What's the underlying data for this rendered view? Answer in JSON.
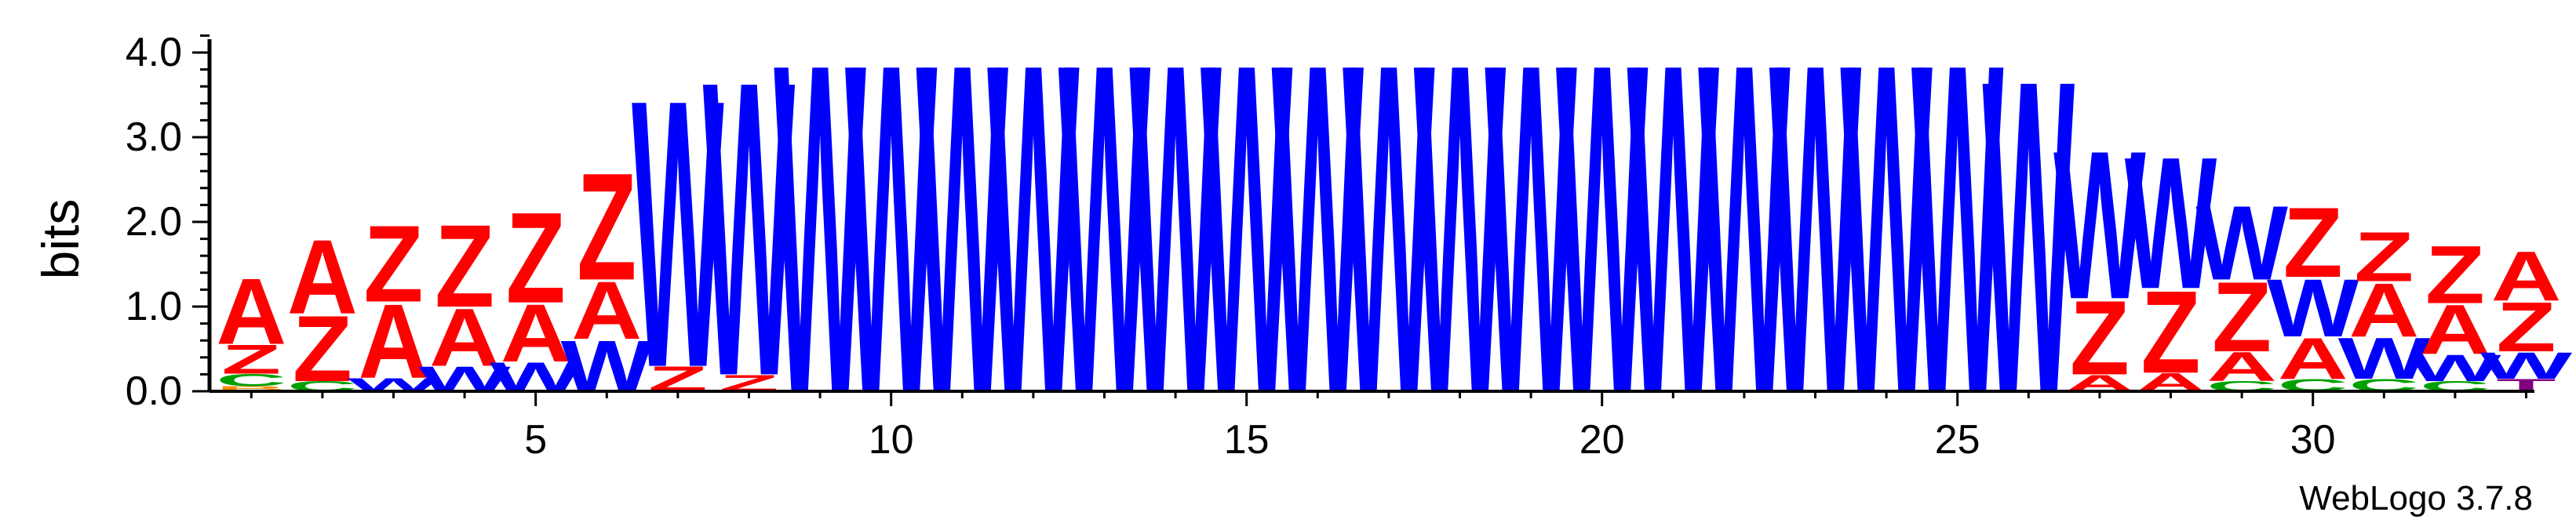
{
  "chart_data": {
    "type": "sequence-logo",
    "ylabel": "bits",
    "ylim": [
      0,
      4.2
    ],
    "y_ticks": [
      0.0,
      1.0,
      2.0,
      3.0,
      4.0
    ],
    "y_tick_labels": [
      "0.0",
      "1.0",
      "2.0",
      "3.0",
      "4.0"
    ],
    "x_ticks": [
      5,
      10,
      15,
      20,
      25,
      30
    ],
    "x_tick_labels": [
      "5",
      "10",
      "15",
      "20",
      "25",
      "30"
    ],
    "footer": "WebLogo 3.7.8",
    "colors": {
      "A": "#ff0000",
      "Z": "#ff0000",
      "W": "#0000ff",
      "C": "#00a000",
      "B": "#ff8c00",
      "T": "#800080",
      "G": "#ff8c00",
      "axis": "#000000"
    },
    "positions": [
      {
        "pos": 1,
        "letters": [
          {
            "l": "B",
            "v": 0.06
          },
          {
            "l": "C",
            "v": 0.15
          },
          {
            "l": "Z",
            "v": 0.35
          },
          {
            "l": "A",
            "v": 0.8
          }
        ]
      },
      {
        "pos": 2,
        "letters": [
          {
            "l": "C",
            "v": 0.12
          },
          {
            "l": "Z",
            "v": 0.8
          },
          {
            "l": "A",
            "v": 0.9
          }
        ]
      },
      {
        "pos": 3,
        "letters": [
          {
            "l": "W",
            "v": 0.16
          },
          {
            "l": "A",
            "v": 0.9
          },
          {
            "l": "Z",
            "v": 0.93
          }
        ]
      },
      {
        "pos": 4,
        "letters": [
          {
            "l": "W",
            "v": 0.3
          },
          {
            "l": "A",
            "v": 0.7
          },
          {
            "l": "Z",
            "v": 1.0
          }
        ]
      },
      {
        "pos": 5,
        "letters": [
          {
            "l": "W",
            "v": 0.35
          },
          {
            "l": "A",
            "v": 0.7
          },
          {
            "l": "Z",
            "v": 1.1
          }
        ]
      },
      {
        "pos": 6,
        "letters": [
          {
            "l": "W",
            "v": 0.62
          },
          {
            "l": "A",
            "v": 0.7
          },
          {
            "l": "Z",
            "v": 1.3
          }
        ]
      },
      {
        "pos": 7,
        "letters": [
          {
            "l": "Z",
            "v": 0.3
          },
          {
            "l": "W",
            "v": 3.25
          }
        ]
      },
      {
        "pos": 8,
        "letters": [
          {
            "l": "Z",
            "v": 0.2
          },
          {
            "l": "W",
            "v": 3.58
          }
        ]
      },
      {
        "pos": 9,
        "letters": [
          {
            "l": "W",
            "v": 4.0
          }
        ]
      },
      {
        "pos": 10,
        "letters": [
          {
            "l": "W",
            "v": 4.0
          }
        ]
      },
      {
        "pos": 11,
        "letters": [
          {
            "l": "W",
            "v": 4.0
          }
        ]
      },
      {
        "pos": 12,
        "letters": [
          {
            "l": "W",
            "v": 4.0
          }
        ]
      },
      {
        "pos": 13,
        "letters": [
          {
            "l": "W",
            "v": 4.0
          }
        ]
      },
      {
        "pos": 14,
        "letters": [
          {
            "l": "W",
            "v": 4.0
          }
        ]
      },
      {
        "pos": 15,
        "letters": [
          {
            "l": "W",
            "v": 4.0
          }
        ]
      },
      {
        "pos": 16,
        "letters": [
          {
            "l": "W",
            "v": 4.0
          }
        ]
      },
      {
        "pos": 17,
        "letters": [
          {
            "l": "W",
            "v": 4.0
          }
        ]
      },
      {
        "pos": 18,
        "letters": [
          {
            "l": "W",
            "v": 4.0
          }
        ]
      },
      {
        "pos": 19,
        "letters": [
          {
            "l": "W",
            "v": 4.0
          }
        ]
      },
      {
        "pos": 20,
        "letters": [
          {
            "l": "W",
            "v": 4.0
          }
        ]
      },
      {
        "pos": 21,
        "letters": [
          {
            "l": "W",
            "v": 4.0
          }
        ]
      },
      {
        "pos": 22,
        "letters": [
          {
            "l": "W",
            "v": 4.0
          }
        ]
      },
      {
        "pos": 23,
        "letters": [
          {
            "l": "W",
            "v": 4.0
          }
        ]
      },
      {
        "pos": 24,
        "letters": [
          {
            "l": "W",
            "v": 4.0
          }
        ]
      },
      {
        "pos": 25,
        "letters": [
          {
            "l": "W",
            "v": 4.0
          }
        ]
      },
      {
        "pos": 26,
        "letters": [
          {
            "l": "W",
            "v": 3.8
          }
        ]
      },
      {
        "pos": 27,
        "letters": [
          {
            "l": "A",
            "v": 0.2
          },
          {
            "l": "Z",
            "v": 0.9
          },
          {
            "l": "W",
            "v": 1.8
          }
        ]
      },
      {
        "pos": 28,
        "letters": [
          {
            "l": "A",
            "v": 0.22
          },
          {
            "l": "Z",
            "v": 1.0
          },
          {
            "l": "W",
            "v": 1.6
          }
        ]
      },
      {
        "pos": 29,
        "letters": [
          {
            "l": "C",
            "v": 0.12
          },
          {
            "l": "A",
            "v": 0.35
          },
          {
            "l": "Z",
            "v": 0.85
          },
          {
            "l": "W",
            "v": 0.9
          }
        ]
      },
      {
        "pos": 30,
        "letters": [
          {
            "l": "C",
            "v": 0.15
          },
          {
            "l": "A",
            "v": 0.5
          },
          {
            "l": "W",
            "v": 0.7
          },
          {
            "l": "Z",
            "v": 0.85
          }
        ]
      },
      {
        "pos": 31,
        "letters": [
          {
            "l": "C",
            "v": 0.15
          },
          {
            "l": "W",
            "v": 0.5
          },
          {
            "l": "A",
            "v": 0.65
          },
          {
            "l": "Z",
            "v": 0.6
          }
        ]
      },
      {
        "pos": 32,
        "letters": [
          {
            "l": "C",
            "v": 0.12
          },
          {
            "l": "W",
            "v": 0.32
          },
          {
            "l": "A",
            "v": 0.6
          },
          {
            "l": "Z",
            "v": 0.7
          }
        ]
      },
      {
        "pos": 33,
        "letters": [
          {
            "l": "T",
            "v": 0.15
          },
          {
            "l": "W",
            "v": 0.32
          },
          {
            "l": "Z",
            "v": 0.6
          },
          {
            "l": "A",
            "v": 0.6
          }
        ]
      }
    ]
  }
}
